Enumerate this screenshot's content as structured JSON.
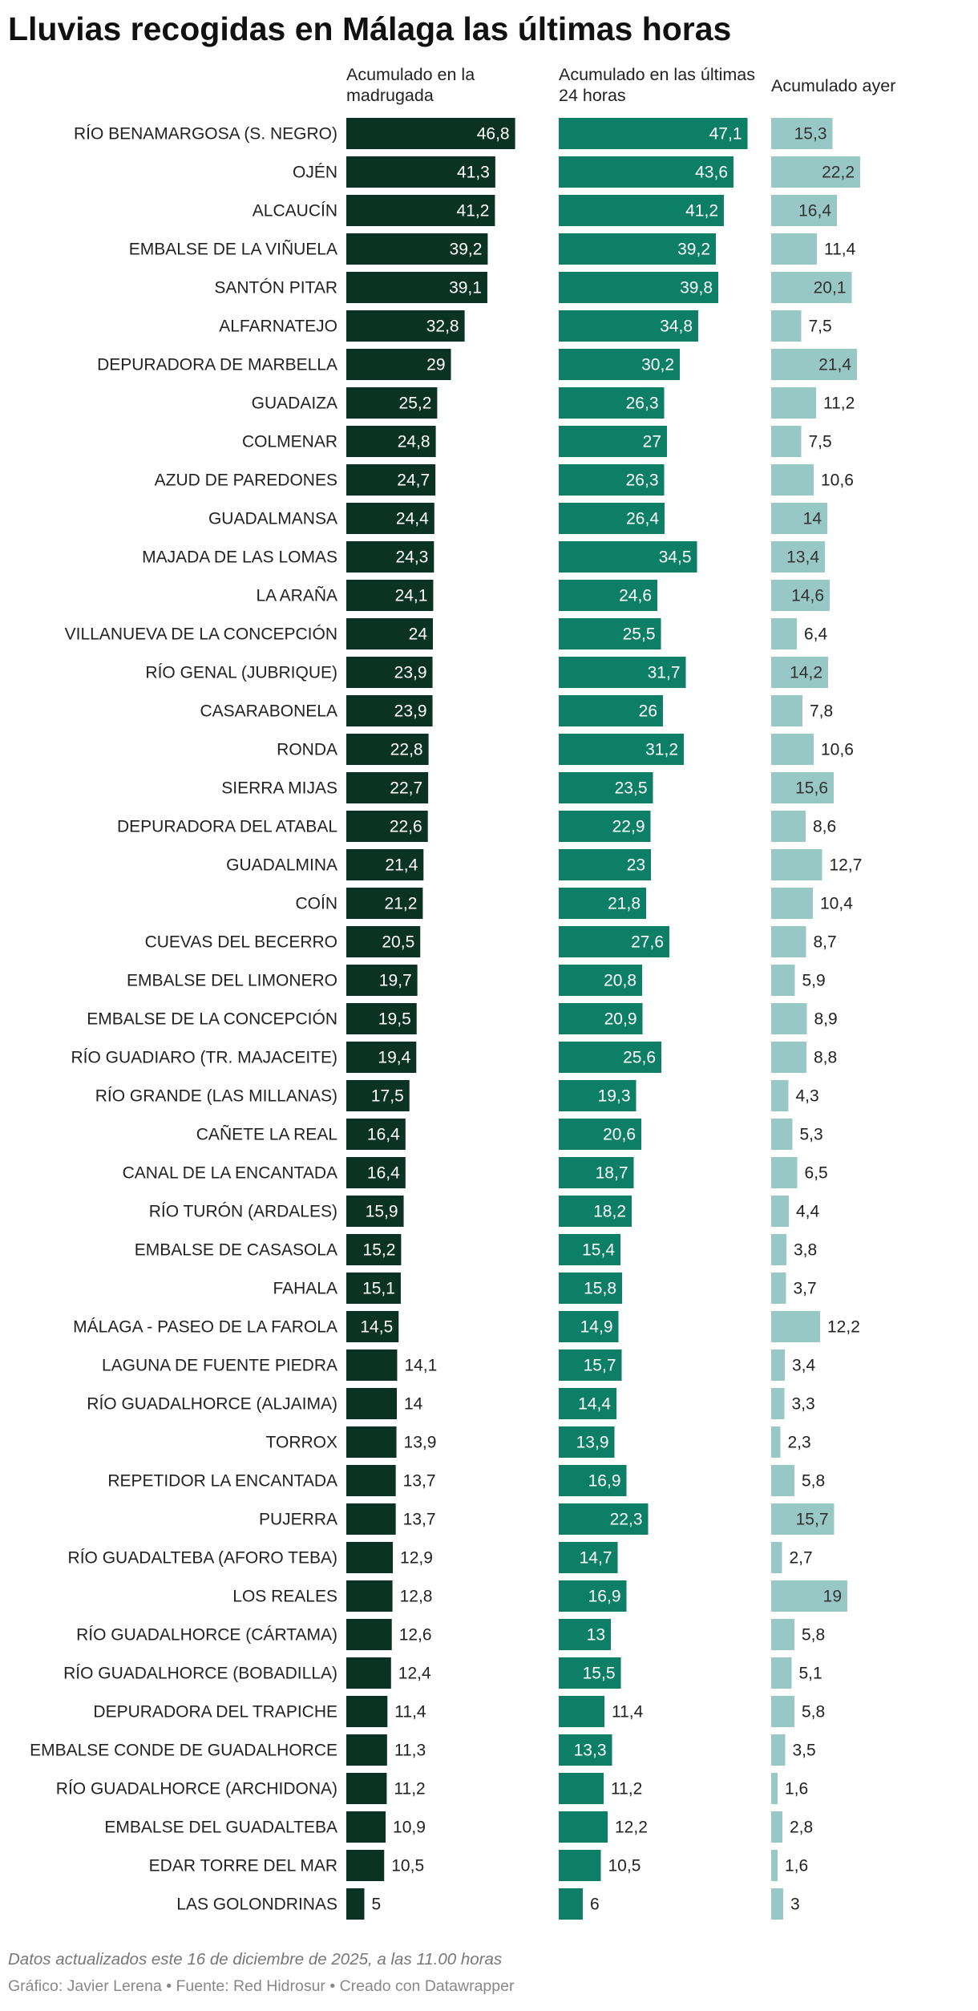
{
  "header": {
    "title": "Lluvias recogidas en Málaga las últimas horas",
    "col1": "Acumulado en la madrugada",
    "col2": "Acumulado en las últimas 24 horas",
    "col3": "Acumulado ayer"
  },
  "footer": {
    "note": "Datos actualizados este 16 de diciembre de 2025, a las 11.00 horas",
    "credit": "Gráfico: Javier Lerena • Fuente: Red Hidrosur • Creado con Datawrapper"
  },
  "colors": {
    "col1": "#0a3324",
    "col2": "#0c7f66",
    "col3": "#98c8c6"
  },
  "chart_data": {
    "type": "bar",
    "orientation": "horizontal",
    "categories": [
      "RÍO BENAMARGOSA (S. NEGRO)",
      "OJÉN",
      "ALCAUCÍN",
      "EMBALSE DE LA VIÑUELA",
      "SANTÓN PITAR",
      "ALFARNATEJO",
      "DEPURADORA DE MARBELLA",
      "GUADAIZA",
      "COLMENAR",
      "AZUD DE PAREDONES",
      "GUADALMANSA",
      "MAJADA DE LAS LOMAS",
      "LA ARAÑA",
      "VILLANUEVA DE LA CONCEPCIÓN",
      "RÍO GENAL (JUBRIQUE)",
      "CASARABONELA",
      "RONDA",
      "SIERRA MIJAS",
      "DEPURADORA DEL ATABAL",
      "GUADALMINA",
      "COÍN",
      "CUEVAS DEL BECERRO",
      "EMBALSE DEL LIMONERO",
      "EMBALSE DE LA CONCEPCIÓN",
      "RÍO GUADIARO (TR. MAJACEITE)",
      "RÍO GRANDE (LAS MILLANAS)",
      "CAÑETE LA REAL",
      "CANAL DE LA ENCANTADA",
      "RÍO TURÓN (ARDALES)",
      "EMBALSE DE CASASOLA",
      "FAHALA",
      "MÁLAGA - PASEO DE LA FAROLA",
      "LAGUNA DE FUENTE PIEDRA",
      "RÍO GUADALHORCE (ALJAIMA)",
      "TORROX",
      "REPETIDOR LA ENCANTADA",
      "PUJERRA",
      "RÍO GUADALTEBA (AFORO TEBA)",
      "LOS REALES",
      "RÍO GUADALHORCE (CÁRTAMA)",
      "RÍO GUADALHORCE (BOBADILLA)",
      "DEPURADORA DEL TRAPICHE",
      "EMBALSE CONDE DE GUADALHORCE",
      "RÍO GUADALHORCE (ARCHIDONA)",
      "EMBALSE DEL GUADALTEBA",
      "EDAR TORRE DEL MAR",
      "LAS GOLONDRINAS"
    ],
    "series": [
      {
        "name": "Acumulado en la madrugada",
        "values": [
          46.8,
          41.3,
          41.2,
          39.2,
          39.1,
          32.8,
          29,
          25.2,
          24.8,
          24.7,
          24.4,
          24.3,
          24.1,
          24,
          23.9,
          23.9,
          22.8,
          22.7,
          22.6,
          21.4,
          21.2,
          20.5,
          19.7,
          19.5,
          19.4,
          17.5,
          16.4,
          16.4,
          15.9,
          15.2,
          15.1,
          14.5,
          14.1,
          14,
          13.9,
          13.7,
          13.7,
          12.9,
          12.8,
          12.6,
          12.4,
          11.4,
          11.3,
          11.2,
          10.9,
          10.5,
          5
        ]
      },
      {
        "name": "Acumulado en las últimas 24 horas",
        "values": [
          47.1,
          43.6,
          41.2,
          39.2,
          39.8,
          34.8,
          30.2,
          26.3,
          27,
          26.3,
          26.4,
          34.5,
          24.6,
          25.5,
          31.7,
          26,
          31.2,
          23.5,
          22.9,
          23,
          21.8,
          27.6,
          20.8,
          20.9,
          25.6,
          19.3,
          20.6,
          18.7,
          18.2,
          15.4,
          15.8,
          14.9,
          15.7,
          14.4,
          13.9,
          16.9,
          22.3,
          14.7,
          16.9,
          13,
          15.5,
          11.4,
          13.3,
          11.2,
          12.2,
          10.5,
          6
        ]
      },
      {
        "name": "Acumulado ayer",
        "values": [
          15.3,
          22.2,
          16.4,
          11.4,
          20.1,
          7.5,
          21.4,
          11.2,
          7.5,
          10.6,
          14,
          13.4,
          14.6,
          6.4,
          14.2,
          7.8,
          10.6,
          15.6,
          8.6,
          12.7,
          10.4,
          8.7,
          5.9,
          8.9,
          8.8,
          4.3,
          5.3,
          6.5,
          4.4,
          3.8,
          3.7,
          12.2,
          3.4,
          3.3,
          2.3,
          5.8,
          15.7,
          2.7,
          19,
          5.8,
          5.1,
          5.8,
          3.5,
          1.6,
          2.8,
          1.6,
          3
        ]
      }
    ],
    "decimal_separator": ",",
    "grid": false,
    "legend": "column headers"
  }
}
